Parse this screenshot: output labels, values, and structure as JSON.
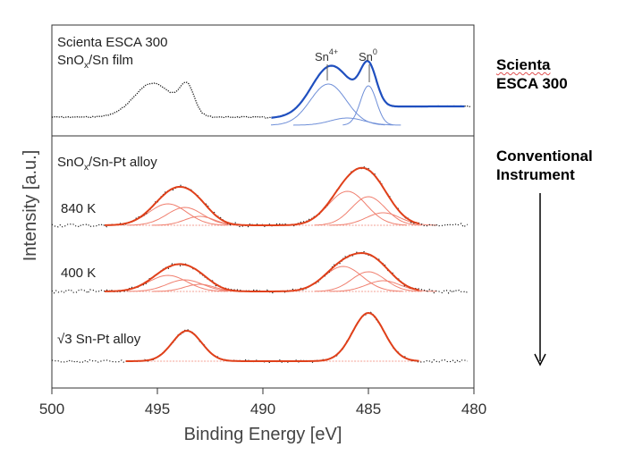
{
  "chart_data": {
    "type": "line",
    "xlabel": "Binding Energy [eV]",
    "ylabel": "Intensity [a.u.]",
    "xlim": [
      500,
      480
    ],
    "x_ticks": [
      "500",
      "495",
      "490",
      "485",
      "480"
    ],
    "panels": [
      {
        "label_line1": "Scienta ESCA 300",
        "label_line2_prefix": "SnO",
        "label_line2_sub": "x",
        "label_line2_suffix": "/Sn film",
        "colors": {
          "data": "#111111",
          "fit": "#1f4fbf",
          "components": "#6f8fd8"
        },
        "peaks": [
          {
            "label": "Sn",
            "sup": "4+",
            "center": 486.9
          },
          {
            "label": "Sn",
            "sup": "0",
            "center": 485.0
          }
        ]
      },
      {
        "label_line1": "SnO",
        "label_sub": "x",
        "label_suffix": "/Sn-Pt alloy",
        "spectra": [
          {
            "name": "840 K",
            "colors": {
              "data": "#111111",
              "fit": "#e0401a",
              "components": "#f08070"
            }
          },
          {
            "name": "400 K",
            "colors": {
              "data": "#111111",
              "fit": "#e0401a",
              "components": "#f08070"
            }
          },
          {
            "name": "√3 Sn-Pt alloy",
            "colors": {
              "data": "#111111",
              "fit": "#e0401a",
              "components": "#f08070"
            }
          }
        ]
      }
    ],
    "grid": false
  },
  "annotations": {
    "scienta_line1": "Scienta",
    "scienta_line2": "ESCA 300",
    "conventional_line1": "Conventional",
    "conventional_line2": "Instrument"
  }
}
